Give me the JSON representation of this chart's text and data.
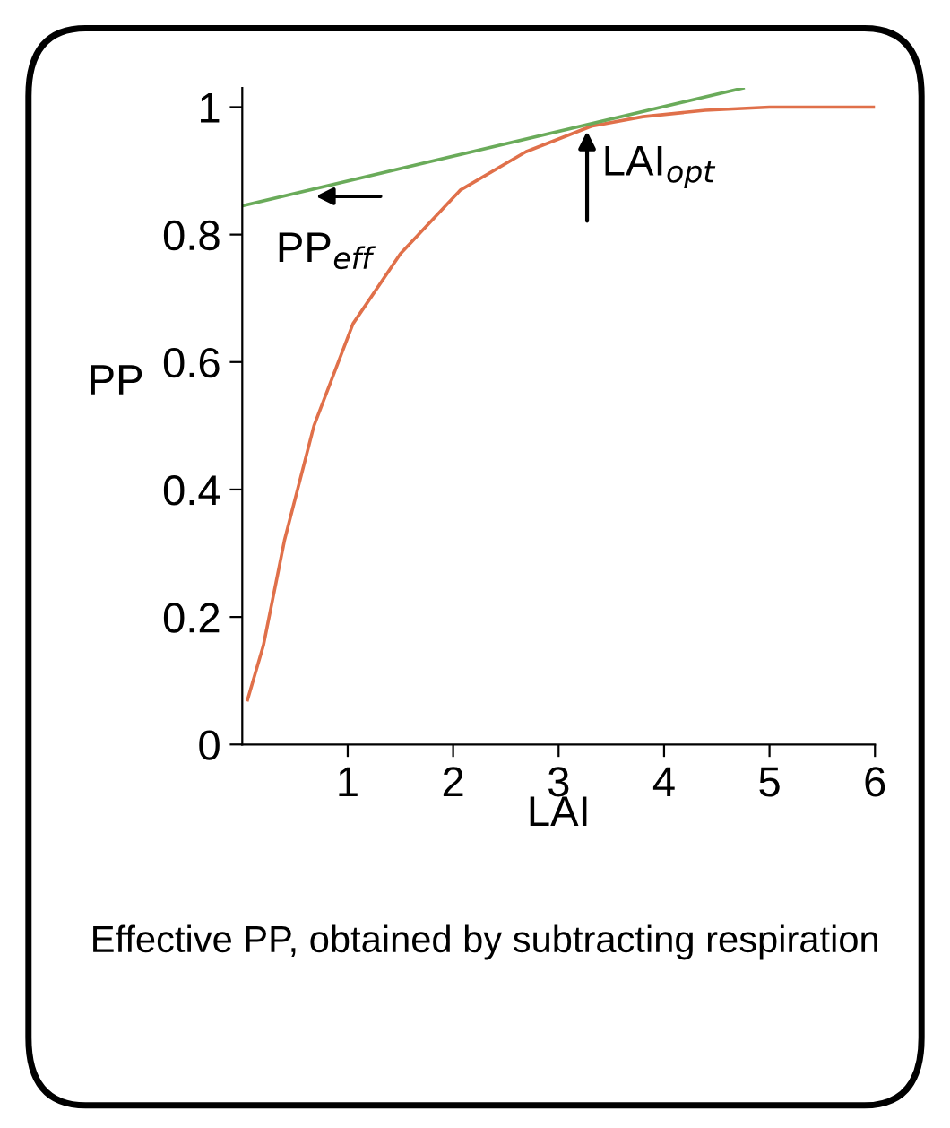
{
  "chart_data": {
    "type": "line",
    "xlabel": "LAI",
    "ylabel": "PP",
    "xlim": [
      0,
      6
    ],
    "ylim": [
      0,
      1.03
    ],
    "xticks": [
      1,
      2,
      3,
      4,
      5,
      6
    ],
    "yticks": [
      0,
      0.2,
      0.4,
      0.6,
      0.8,
      1
    ],
    "grid": false,
    "legend": false,
    "marker": "none",
    "line_style": "solid",
    "series": [
      {
        "color": "#e0704a",
        "x": [
          0.05,
          0.2,
          0.4,
          0.68,
          1.05,
          1.5,
          2.07,
          2.69,
          3.31,
          3.8,
          4.39,
          5.0,
          6.0
        ],
        "values": [
          0.07,
          0.155,
          0.32,
          0.5,
          0.66,
          0.77,
          0.87,
          0.93,
          0.97,
          0.985,
          0.995,
          1.0,
          1.0
        ]
      },
      {
        "color": "#6aab5a",
        "x": [
          0,
          4.75
        ],
        "values": [
          0.845,
          1.03
        ]
      }
    ],
    "annotations": [
      {
        "text": "PP$_{eff}$",
        "x": 0.65,
        "y": 0.86
      },
      {
        "text": "LAI$_{opt}$",
        "x": 3.27,
        "y": 0.97
      },
      "Effective PP, obtained by subtracting respiration"
    ]
  }
}
